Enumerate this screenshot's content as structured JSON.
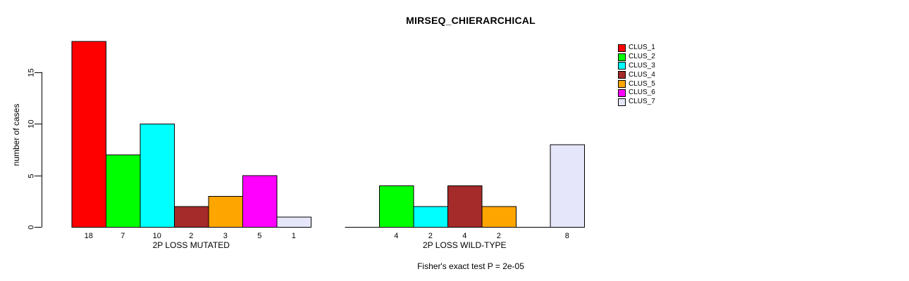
{
  "title": "MIRSEQ_CHIERARCHICAL",
  "chart_data": {
    "type": "bar",
    "title": "MIRSEQ_CHIERARCHICAL",
    "xlabel": "",
    "ylabel": "number of cases",
    "yticks": [
      0,
      5,
      10,
      15
    ],
    "ylim": [
      0,
      18
    ],
    "grid": false,
    "legend_position": "right",
    "series": [
      {
        "name": "CLUS_1",
        "color": "#FF0000"
      },
      {
        "name": "CLUS_2",
        "color": "#00FF00"
      },
      {
        "name": "CLUS_3",
        "color": "#00FFFF"
      },
      {
        "name": "CLUS_4",
        "color": "#A52A2A"
      },
      {
        "name": "CLUS_5",
        "color": "#FFA500"
      },
      {
        "name": "CLUS_6",
        "color": "#FF00FF"
      },
      {
        "name": "CLUS_7",
        "color": "#E6E6FA"
      }
    ],
    "groups": [
      {
        "label": "2P LOSS MUTATED",
        "values": [
          18,
          7,
          10,
          2,
          3,
          5,
          1
        ]
      },
      {
        "label": "2P LOSS WILD-TYPE",
        "values": [
          0,
          4,
          2,
          4,
          2,
          0,
          8
        ]
      }
    ],
    "bar_labels": [
      [
        "18",
        "7",
        "10",
        "2",
        "3",
        "5",
        "1"
      ],
      [
        "",
        "4",
        "2",
        "4",
        "2",
        "",
        "8"
      ]
    ],
    "annotation": "Fisher's exact test P = 2e-05",
    "axis_color": "#000000",
    "bar_border_color": "#000000"
  }
}
